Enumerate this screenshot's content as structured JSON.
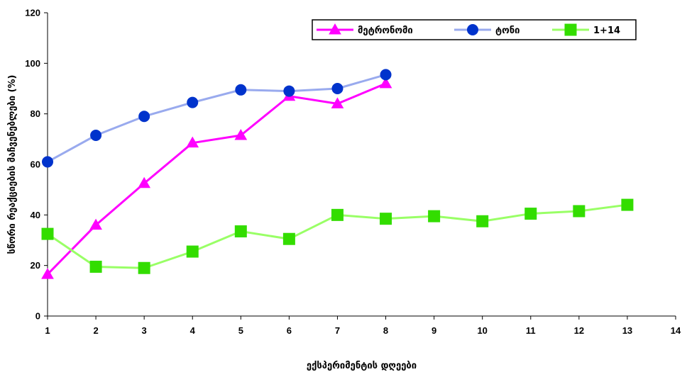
{
  "chart_data": {
    "type": "line",
    "xlabel": "ექსპერიმენტის დღეები",
    "ylabel": "სწორი რეაქციების მაჩვენებლები (%)",
    "xlim": [
      1,
      14
    ],
    "ylim": [
      0,
      120
    ],
    "x_ticks": [
      1,
      2,
      3,
      4,
      5,
      6,
      7,
      8,
      9,
      10,
      11,
      12,
      13,
      14
    ],
    "y_ticks": [
      0,
      20,
      40,
      60,
      80,
      100,
      120
    ],
    "grid": false,
    "legend_position": "top-right",
    "series": [
      {
        "name": "მეტრონომი",
        "color": "#ff00ff",
        "marker": "triangle",
        "x": [
          1,
          2,
          3,
          4,
          5,
          6,
          7,
          8
        ],
        "values": [
          16.5,
          36,
          52.5,
          68.5,
          71.5,
          87,
          84,
          92
        ]
      },
      {
        "name": "ტონი",
        "color": "#99aaee",
        "marker_color": "#0033cc",
        "marker": "circle",
        "x": [
          1,
          2,
          3,
          4,
          5,
          6,
          7,
          8
        ],
        "values": [
          61,
          71.5,
          79,
          84.5,
          89.5,
          89,
          90,
          95.5
        ]
      },
      {
        "name": "1+14",
        "color": "#99ff66",
        "marker_color": "#33dd00",
        "marker": "square",
        "x": [
          1,
          2,
          3,
          4,
          5,
          6,
          7,
          8,
          9,
          10,
          11,
          12,
          13
        ],
        "values": [
          32.5,
          19.5,
          19,
          25.5,
          33.5,
          30.5,
          40,
          38.5,
          39.5,
          37.5,
          40.5,
          41.5,
          44
        ]
      }
    ]
  }
}
